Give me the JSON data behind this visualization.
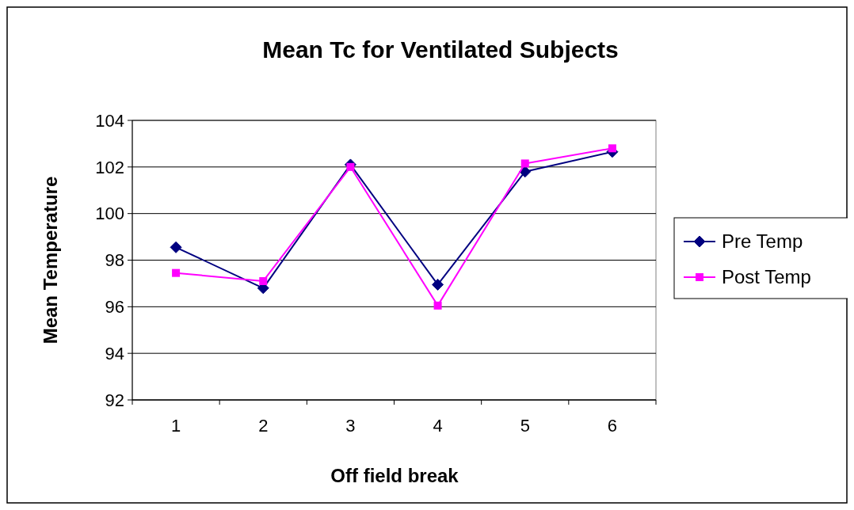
{
  "chart_data": {
    "type": "line",
    "title": "Mean Tc for Ventilated Subjects",
    "xlabel": "Off field break",
    "ylabel": "Mean Temperature",
    "categories": [
      "1",
      "2",
      "3",
      "4",
      "5",
      "6"
    ],
    "ylim": [
      92,
      104
    ],
    "yticks": [
      92,
      94,
      96,
      98,
      100,
      102,
      104
    ],
    "grid": "y",
    "legend": "right",
    "line_style": "solid",
    "series": [
      {
        "name": "Pre Temp",
        "color": "#000080",
        "marker": "diamond",
        "values": [
          98.55,
          96.8,
          102.1,
          96.95,
          101.8,
          102.65
        ]
      },
      {
        "name": "Post Temp",
        "color": "#ff00ff",
        "marker": "square",
        "values": [
          97.45,
          97.1,
          102.0,
          96.05,
          102.15,
          102.8
        ]
      }
    ]
  }
}
